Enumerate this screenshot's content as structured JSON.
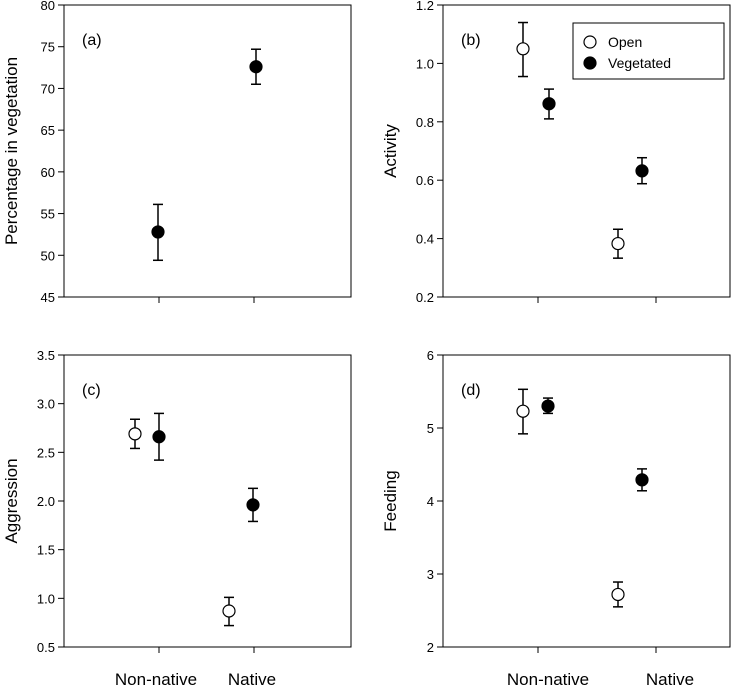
{
  "chart_data": [
    {
      "panel": "(a)",
      "type": "scatter",
      "ylabel": "Percentage in vegetation",
      "ylim": [
        45,
        80
      ],
      "yticks": [
        45,
        50,
        55,
        60,
        65,
        70,
        75,
        80
      ],
      "ytick_labels": [
        "45",
        "50",
        "55",
        "60",
        "65",
        "70",
        "75",
        "80"
      ],
      "categories": [
        "Non-native",
        "Native"
      ],
      "points": [
        {
          "series": "Vegetated",
          "category": "Non-native",
          "y": 52.8,
          "err_low": 49.4,
          "err_high": 56.1
        },
        {
          "series": "Vegetated",
          "category": "Native",
          "y": 72.6,
          "err_low": 70.5,
          "err_high": 74.7
        }
      ]
    },
    {
      "panel": "(b)",
      "type": "scatter",
      "ylabel": "Activity",
      "ylim": [
        0.2,
        1.2
      ],
      "yticks": [
        0.2,
        0.4,
        0.6,
        0.8,
        1.0,
        1.2
      ],
      "ytick_labels": [
        "0.2",
        "0.4",
        "0.6",
        "0.8",
        "1.0",
        "1.2"
      ],
      "categories": [
        "Non-native",
        "Native"
      ],
      "points": [
        {
          "series": "Open",
          "category": "Non-native",
          "y": 1.05,
          "err_low": 0.955,
          "err_high": 1.14
        },
        {
          "series": "Vegetated",
          "category": "Non-native",
          "y": 0.862,
          "err_low": 0.81,
          "err_high": 0.912
        },
        {
          "series": "Open",
          "category": "Native",
          "y": 0.383,
          "err_low": 0.333,
          "err_high": 0.432
        },
        {
          "series": "Vegetated",
          "category": "Native",
          "y": 0.632,
          "err_low": 0.588,
          "err_high": 0.677
        }
      ],
      "legend": [
        {
          "label": "Open",
          "marker": "open-circle"
        },
        {
          "label": "Vegetated",
          "marker": "filled-circle"
        }
      ]
    },
    {
      "panel": "(c)",
      "type": "scatter",
      "ylabel": "Aggression",
      "ylim": [
        0.5,
        3.5
      ],
      "yticks": [
        0.5,
        1.0,
        1.5,
        2.0,
        2.5,
        3.0,
        3.5
      ],
      "ytick_labels": [
        "0.5",
        "1.0",
        "1.5",
        "2.0",
        "2.5",
        "3.0",
        "3.5"
      ],
      "categories": [
        "Non-native",
        "Native"
      ],
      "points": [
        {
          "series": "Open",
          "category": "Non-native",
          "y": 2.69,
          "err_low": 2.54,
          "err_high": 2.84
        },
        {
          "series": "Vegetated",
          "category": "Non-native",
          "y": 2.66,
          "err_low": 2.42,
          "err_high": 2.9
        },
        {
          "series": "Open",
          "category": "Native",
          "y": 0.87,
          "err_low": 0.72,
          "err_high": 1.01
        },
        {
          "series": "Vegetated",
          "category": "Native",
          "y": 1.96,
          "err_low": 1.79,
          "err_high": 2.13
        }
      ]
    },
    {
      "panel": "(d)",
      "type": "scatter",
      "ylabel": "Feeding",
      "ylim": [
        2,
        6
      ],
      "yticks": [
        2,
        3,
        4,
        5,
        6
      ],
      "ytick_labels": [
        "2",
        "3",
        "4",
        "5",
        "6"
      ],
      "categories": [
        "Non-native",
        "Native"
      ],
      "points": [
        {
          "series": "Open",
          "category": "Non-native",
          "y": 5.23,
          "err_low": 4.92,
          "err_high": 5.53
        },
        {
          "series": "Vegetated",
          "category": "Non-native",
          "y": 5.3,
          "err_low": 5.2,
          "err_high": 5.41
        },
        {
          "series": "Open",
          "category": "Native",
          "y": 2.72,
          "err_low": 2.55,
          "err_high": 2.89
        },
        {
          "series": "Vegetated",
          "category": "Native",
          "y": 4.29,
          "err_low": 4.14,
          "err_high": 4.44
        }
      ]
    }
  ],
  "colors": {
    "axis": "#000000",
    "open_fill": "#ffffff",
    "vegetated_fill": "#000000"
  }
}
